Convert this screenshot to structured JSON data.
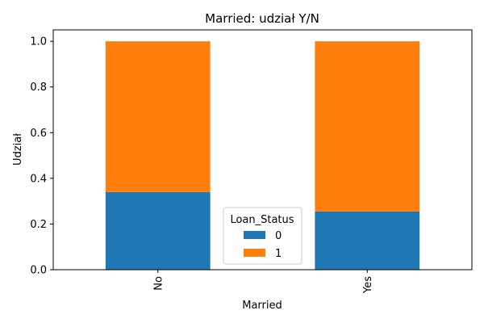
{
  "chart_data": {
    "type": "bar",
    "stacked": true,
    "title": "Married: udział Y/N",
    "xlabel": "Married",
    "ylabel": "Udział",
    "categories": [
      "No",
      "Yes"
    ],
    "series": [
      {
        "name": "0",
        "values": [
          0.34,
          0.255
        ],
        "color": "#1f77b4"
      },
      {
        "name": "1",
        "values": [
          0.66,
          0.745
        ],
        "color": "#ff7f0e"
      }
    ],
    "ylim": [
      0,
      1.05
    ],
    "yticks": [
      "0.0",
      "0.2",
      "0.4",
      "0.6",
      "0.8",
      "1.0"
    ],
    "legend": {
      "title": "Loan_Status",
      "placement": "bottom-center"
    },
    "grid": false
  }
}
